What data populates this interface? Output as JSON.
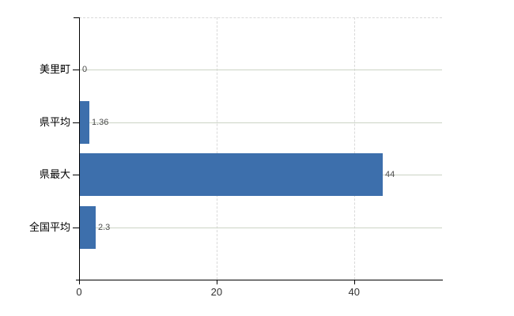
{
  "chart_data": {
    "type": "bar",
    "orientation": "horizontal",
    "title": "",
    "categories": [
      "美里町",
      "県平均",
      "県最大",
      "全国平均"
    ],
    "values": [
      0,
      1.36,
      44,
      2.3
    ],
    "value_labels": [
      "0",
      "1.36",
      "44",
      "2.3"
    ],
    "x_ticks": [
      0,
      20,
      40
    ],
    "x_tick_labels": [
      "0",
      "20",
      "40"
    ],
    "xlim": [
      0,
      52.8
    ],
    "grid": {
      "horizontal_solid": true,
      "vertical_dashed": true,
      "top_border_dashed": true
    },
    "legend": "none",
    "colors": {
      "bar": "#3d6fac",
      "horizontal_grid": "#cbd3c5",
      "vertical_grid": "#d9d9d9",
      "axis": "#000000",
      "category_label": "#000000",
      "value_label": "#4d4d4d",
      "tick_label": "#333333",
      "background": "#ffffff"
    }
  }
}
